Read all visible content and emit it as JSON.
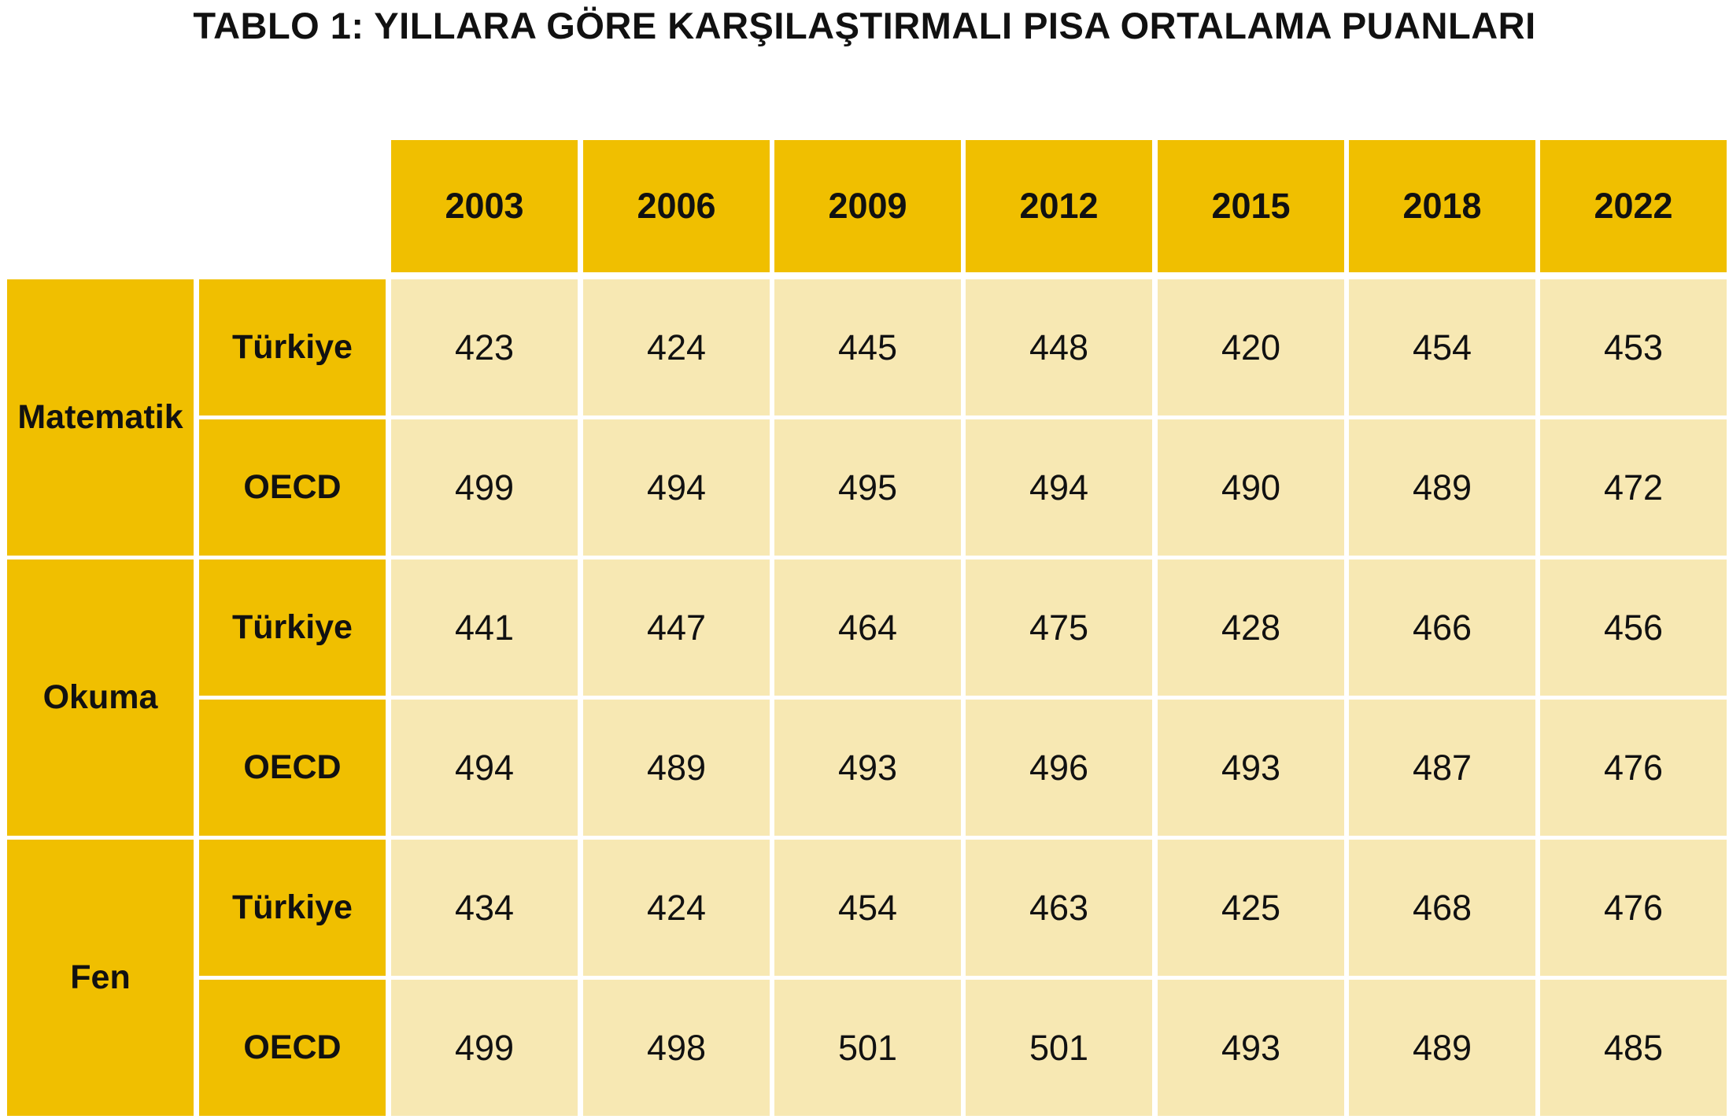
{
  "title": "TABLO 1: YILLARA GÖRE KARŞILAŞTIRMALI PISA ORTALAMA PUANLARI",
  "colors": {
    "header_bg": "#f0bf00",
    "cell_bg": "#f7e8b3",
    "text": "#111111"
  },
  "chart_data": {
    "type": "table",
    "title": "TABLO 1: YILLARA GÖRE KARŞILAŞTIRMALI PISA ORTALAMA PUANLARI",
    "columns": [
      "2003",
      "2006",
      "2009",
      "2012",
      "2015",
      "2018",
      "2022"
    ],
    "groups": [
      {
        "subject": "Matematik",
        "rows": [
          {
            "label": "Türkiye",
            "values": [
              423,
              424,
              445,
              448,
              420,
              454,
              453
            ]
          },
          {
            "label": "OECD",
            "values": [
              499,
              494,
              495,
              494,
              490,
              489,
              472
            ]
          }
        ]
      },
      {
        "subject": "Okuma",
        "rows": [
          {
            "label": "Türkiye",
            "values": [
              441,
              447,
              464,
              475,
              428,
              466,
              456
            ]
          },
          {
            "label": "OECD",
            "values": [
              494,
              489,
              493,
              496,
              493,
              487,
              476
            ]
          }
        ]
      },
      {
        "subject": "Fen",
        "rows": [
          {
            "label": "Türkiye",
            "values": [
              434,
              424,
              454,
              463,
              425,
              468,
              476
            ]
          },
          {
            "label": "OECD",
            "values": [
              499,
              498,
              501,
              501,
              493,
              489,
              485
            ]
          }
        ]
      }
    ]
  }
}
